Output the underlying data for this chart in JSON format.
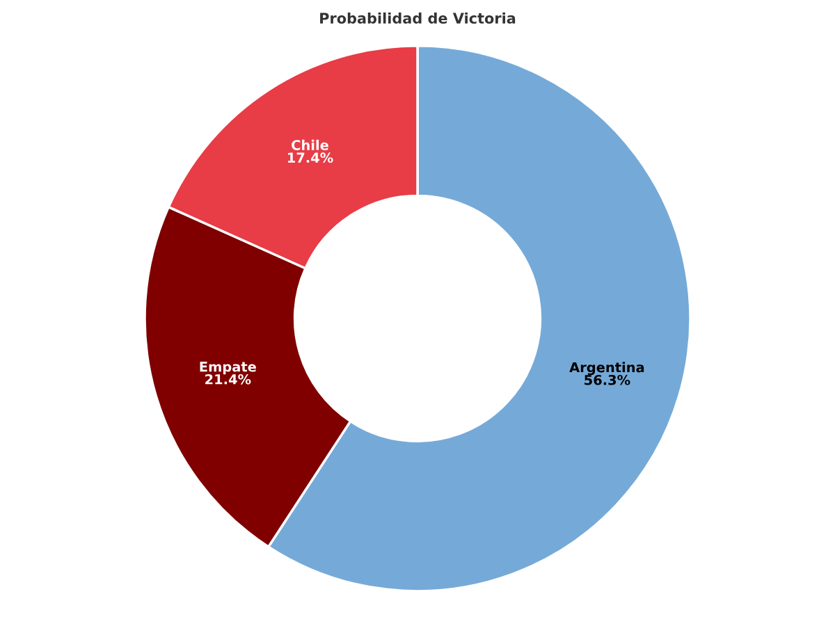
{
  "chart_data": {
    "type": "donut",
    "title": "Probabilidad de Victoria",
    "categories": [
      "Argentina",
      "Empate",
      "Chile"
    ],
    "values": [
      56.3,
      21.4,
      17.4
    ],
    "value_labels": [
      "56.3%",
      "21.4%",
      "17.4%"
    ],
    "colors": [
      "#75aad8",
      "#800000",
      "#e83c46"
    ],
    "legend": false
  }
}
